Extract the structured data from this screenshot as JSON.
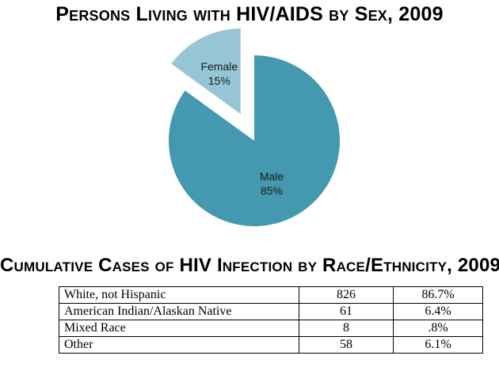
{
  "colors": {
    "male": "#4498B0",
    "female": "#96C5D6"
  },
  "chart_data": [
    {
      "type": "pie",
      "title": "Persons Living with HIV/AIDS by Sex, 2009",
      "slices": [
        {
          "label": "Male",
          "value": 85,
          "value_label": "85%",
          "color": "#4498B0",
          "exploded": false
        },
        {
          "label": "Female",
          "value": 15,
          "value_label": "15%",
          "color": "#96C5D6",
          "exploded": true
        }
      ]
    },
    {
      "type": "table",
      "title": "Cumulative Cases of HIV Infection by Race/Ethnicity, 2009",
      "rows": [
        {
          "label": "White, not Hispanic",
          "count": "826",
          "percent": "86.7%"
        },
        {
          "label": "American Indian/Alaskan Native",
          "count": "61",
          "percent": "6.4%"
        },
        {
          "label": "Mixed Race",
          "count": "8",
          "percent": ".8%"
        },
        {
          "label": "Other",
          "count": "58",
          "percent": "6.1%"
        }
      ]
    }
  ]
}
